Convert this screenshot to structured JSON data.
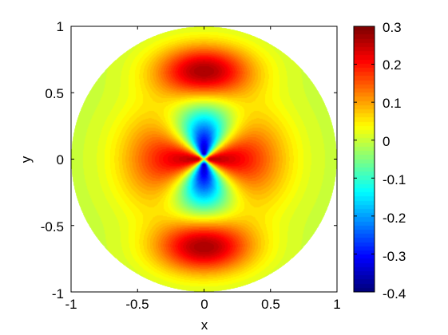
{
  "chart_data": {
    "type": "heatmap",
    "domain": "unit disk",
    "title": "",
    "xlabel": "x",
    "ylabel": "y",
    "xlim": [
      -1,
      1
    ],
    "ylim": [
      -1,
      1
    ],
    "x_ticks": [
      -1,
      -0.5,
      0,
      0.5,
      1
    ],
    "x_tick_labels": [
      "-1",
      "-0.5",
      "0",
      "0.5",
      "1"
    ],
    "y_ticks": [
      -1,
      -0.5,
      0,
      0.5,
      1
    ],
    "y_tick_labels": [
      "-1",
      "-0.5",
      "0",
      "0.5",
      "1"
    ],
    "colormap": "jet",
    "grid": false,
    "colorbar": {
      "location": "right",
      "range": [
        -0.4,
        0.3
      ],
      "ticks": [
        -0.4,
        -0.3,
        -0.2,
        -0.1,
        0,
        0.1,
        0.2,
        0.3
      ],
      "tick_labels": [
        "-0.4",
        "-0.3",
        "-0.2",
        "-0.1",
        "0",
        "0.1",
        "0.2",
        "0.3"
      ]
    },
    "features": [
      {
        "kind": "minimum",
        "x": 0,
        "y": 0.1,
        "value": -0.38
      },
      {
        "kind": "minimum",
        "x": 0,
        "y": -0.1,
        "value": -0.38
      },
      {
        "kind": "maximum",
        "x": -0.3,
        "y": 0,
        "value": 0.25
      },
      {
        "kind": "maximum",
        "x": 0.3,
        "y": 0,
        "value": 0.25
      },
      {
        "kind": "maximum",
        "x": 0,
        "y": 0.66,
        "value": 0.26
      },
      {
        "kind": "maximum",
        "x": 0,
        "y": -0.66,
        "value": 0.26
      },
      {
        "kind": "boundary",
        "x": 1,
        "y": 0,
        "value": 0.02
      }
    ]
  }
}
